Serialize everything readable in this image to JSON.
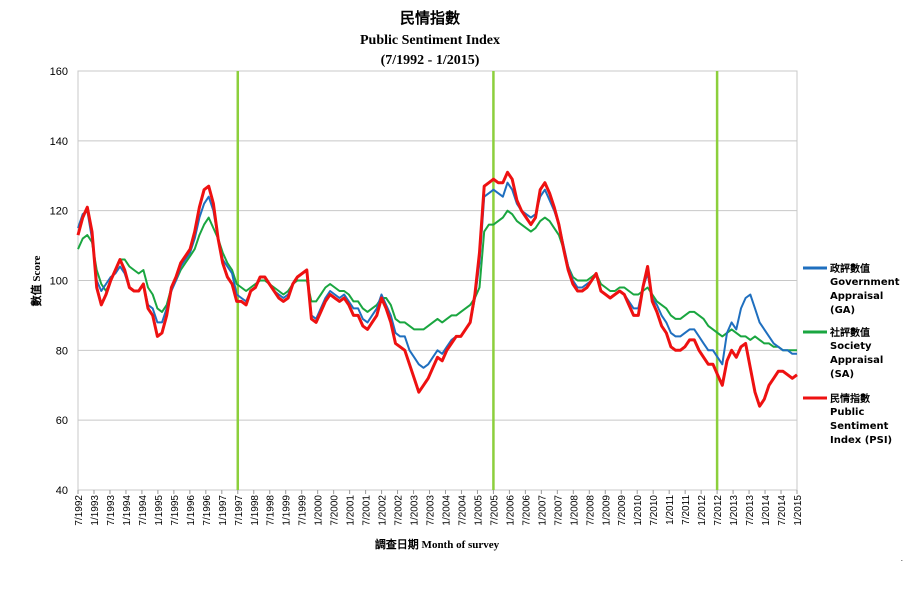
{
  "chart_data": {
    "type": "line",
    "title_zh": "民情指數",
    "title": "Public Sentiment Index",
    "subtitle": "(7/1992 - 1/2015)",
    "xlabel": "調查日期  Month of survey",
    "ylabel": "數值 Score",
    "ylim": [
      40,
      160
    ],
    "y_ticks": [
      "40",
      "60",
      "80",
      "100",
      "120",
      "140",
      "160"
    ],
    "x_ticks": [
      "7/1992",
      "1/1993",
      "7/1993",
      "1/1994",
      "7/1994",
      "1/1995",
      "7/1995",
      "1/1996",
      "7/1996",
      "1/1997",
      "7/1997",
      "1/1998",
      "7/1998",
      "1/1999",
      "7/1999",
      "1/2000",
      "7/2000",
      "1/2001",
      "7/2001",
      "1/2002",
      "7/2002",
      "1/2003",
      "7/2003",
      "1/2004",
      "7/2004",
      "1/2005",
      "7/2005",
      "1/2006",
      "7/2006",
      "1/2007",
      "7/2007",
      "1/2008",
      "7/2008",
      "1/2009",
      "7/2009",
      "1/2010",
      "7/2010",
      "1/2011",
      "7/2011",
      "1/2012",
      "7/2012",
      "1/2013",
      "7/2013",
      "1/2014",
      "7/2014",
      "1/2015"
    ],
    "vertical_markers": [
      "7/1997",
      "7/2005",
      "7/2012"
    ],
    "grid": "horizontal",
    "legend_position": "right",
    "colors": {
      "GA": "#1f6fbf",
      "SA": "#1aa640",
      "PSI": "#ee1111",
      "marker": "#8ccf3c"
    },
    "series": [
      {
        "key": "GA",
        "name_zh": "政評數值",
        "name": "Government Appraisal (GA)",
        "values": [
          115,
          119,
          120,
          112,
          100,
          97,
          99,
          101,
          102,
          104,
          102,
          98,
          97,
          97,
          99,
          93,
          92,
          88,
          88,
          92,
          97,
          100,
          104,
          106,
          108,
          112,
          118,
          122,
          124,
          120,
          112,
          106,
          104,
          102,
          96,
          95,
          94,
          97,
          98,
          101,
          101,
          99,
          97,
          96,
          95,
          96,
          99,
          101,
          102,
          103,
          90,
          89,
          92,
          95,
          97,
          96,
          95,
          96,
          94,
          92,
          92,
          89,
          88,
          90,
          92,
          96,
          93,
          90,
          85,
          84,
          84,
          80,
          78,
          76,
          75,
          76,
          78,
          80,
          79,
          81,
          83,
          84,
          84,
          86,
          88,
          95,
          105,
          124,
          125,
          126,
          125,
          124,
          128,
          126,
          122,
          120,
          119,
          118,
          119,
          124,
          126,
          123,
          120,
          116,
          110,
          104,
          100,
          98,
          98,
          99,
          100,
          102,
          97,
          96,
          95,
          96,
          97,
          96,
          94,
          92,
          92,
          98,
          102,
          95,
          93,
          90,
          88,
          85,
          84,
          84,
          85,
          86,
          86,
          84,
          82,
          80,
          80,
          78,
          76,
          85,
          88,
          86,
          92,
          95,
          96,
          92,
          88,
          86,
          84,
          82,
          81,
          80,
          80,
          79,
          79
        ]
      },
      {
        "key": "SA",
        "name_zh": "社評數值",
        "name": "Society Appraisal (SA)",
        "values": [
          109,
          112,
          113,
          111,
          103,
          99,
          97,
          100,
          103,
          106,
          106,
          104,
          103,
          102,
          103,
          98,
          96,
          92,
          91,
          93,
          98,
          100,
          103,
          105,
          107,
          109,
          113,
          116,
          118,
          115,
          112,
          108,
          105,
          103,
          99,
          98,
          97,
          98,
          99,
          100,
          100,
          99,
          98,
          97,
          96,
          97,
          99,
          100,
          100,
          100,
          94,
          94,
          96,
          98,
          99,
          98,
          97,
          97,
          96,
          94,
          94,
          92,
          91,
          92,
          93,
          95,
          95,
          93,
          89,
          88,
          88,
          87,
          86,
          86,
          86,
          87,
          88,
          89,
          88,
          89,
          90,
          90,
          91,
          92,
          93,
          95,
          98,
          114,
          116,
          116,
          117,
          118,
          120,
          119,
          117,
          116,
          115,
          114,
          115,
          117,
          118,
          117,
          115,
          113,
          109,
          104,
          101,
          100,
          100,
          100,
          101,
          102,
          99,
          98,
          97,
          97,
          98,
          98,
          97,
          96,
          96,
          97,
          98,
          96,
          94,
          93,
          92,
          90,
          89,
          89,
          90,
          91,
          91,
          90,
          89,
          87,
          86,
          85,
          84,
          85,
          86,
          85,
          84,
          84,
          83,
          84,
          83,
          82,
          82,
          81,
          81,
          80,
          80,
          80,
          80
        ]
      },
      {
        "key": "PSI",
        "name_zh": "民情指數",
        "name": "Public Sentiment Index (PSI)",
        "values": [
          113,
          118,
          121,
          114,
          98,
          93,
          96,
          100,
          103,
          106,
          103,
          98,
          97,
          97,
          99,
          92,
          90,
          84,
          85,
          90,
          98,
          101,
          105,
          107,
          109,
          114,
          121,
          126,
          127,
          122,
          112,
          105,
          101,
          99,
          94,
          94,
          93,
          97,
          98,
          101,
          101,
          99,
          97,
          95,
          94,
          95,
          99,
          101,
          102,
          103,
          89,
          88,
          91,
          94,
          96,
          95,
          94,
          95,
          93,
          90,
          90,
          87,
          86,
          88,
          90,
          95,
          92,
          88,
          82,
          81,
          80,
          76,
          72,
          68,
          70,
          72,
          75,
          78,
          77,
          80,
          82,
          84,
          84,
          86,
          88,
          96,
          108,
          127,
          128,
          129,
          128,
          128,
          131,
          129,
          123,
          120,
          118,
          116,
          118,
          126,
          128,
          125,
          121,
          116,
          109,
          103,
          99,
          97,
          97,
          98,
          100,
          102,
          97,
          96,
          95,
          96,
          97,
          96,
          93,
          90,
          90,
          98,
          104,
          94,
          91,
          87,
          85,
          81,
          80,
          80,
          81,
          83,
          83,
          80,
          78,
          76,
          76,
          73,
          70,
          77,
          80,
          78,
          81,
          82,
          75,
          68,
          64,
          66,
          70,
          72,
          74,
          74,
          73,
          72,
          73
        ]
      }
    ]
  }
}
